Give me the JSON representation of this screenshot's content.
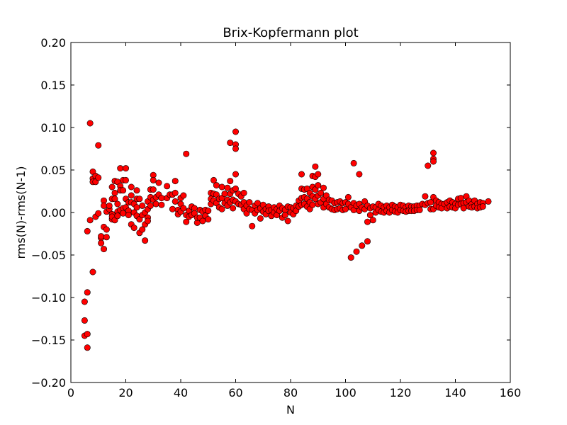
{
  "chart_data": {
    "type": "scatter",
    "title": "Brix-Kopfermann plot",
    "xlabel": "N",
    "ylabel": "rms(N)-rms(N-1)",
    "xlim": [
      0,
      160
    ],
    "ylim": [
      -0.2,
      0.2
    ],
    "x_ticks": [
      0,
      20,
      40,
      60,
      80,
      100,
      120,
      140,
      160
    ],
    "y_ticks": [
      -0.2,
      -0.15,
      -0.1,
      -0.05,
      0.0,
      0.05,
      0.1,
      0.15,
      0.2
    ],
    "x_tick_labels": [
      "0",
      "20",
      "40",
      "60",
      "80",
      "100",
      "120",
      "140",
      "160"
    ],
    "y_tick_labels": [
      "−0.20",
      "−0.15",
      "−0.10",
      "−0.05",
      "0.00",
      "0.05",
      "0.10",
      "0.15",
      "0.20"
    ],
    "grid": false,
    "marker": "circle",
    "marker_color": "#ff0000",
    "marker_edge_color": "#000000",
    "points": [
      [
        5,
        -0.145
      ],
      [
        5,
        -0.105
      ],
      [
        5,
        -0.127
      ],
      [
        6,
        -0.159
      ],
      [
        6,
        -0.143
      ],
      [
        6,
        -0.094
      ],
      [
        6,
        -0.022
      ],
      [
        7,
        0.105
      ],
      [
        7,
        -0.009
      ],
      [
        8,
        -0.07
      ],
      [
        8,
        0.048
      ],
      [
        8,
        0.04
      ],
      [
        8,
        0.036
      ],
      [
        9,
        0.036
      ],
      [
        9,
        0.043
      ],
      [
        9,
        -0.005
      ],
      [
        10,
        0.079
      ],
      [
        10,
        0.041
      ],
      [
        10,
        -0.001
      ],
      [
        11,
        -0.03
      ],
      [
        11,
        -0.036
      ],
      [
        11,
        -0.028
      ],
      [
        12,
        -0.017
      ],
      [
        12,
        -0.043
      ],
      [
        12,
        0.014
      ],
      [
        12,
        0.008
      ],
      [
        13,
        -0.02
      ],
      [
        13,
        -0.029
      ],
      [
        13,
        0.001
      ],
      [
        14,
        0.004
      ],
      [
        14,
        0.008
      ],
      [
        15,
        0.03
      ],
      [
        15,
        0.016
      ],
      [
        15,
        -0.002
      ],
      [
        15,
        -0.008
      ],
      [
        15,
        -0.005
      ],
      [
        16,
        0.037
      ],
      [
        16,
        0.023
      ],
      [
        16,
        0.016
      ],
      [
        16,
        -0.009
      ],
      [
        17,
        0.036
      ],
      [
        17,
        0.01
      ],
      [
        17,
        0.001
      ],
      [
        17,
        -0.004
      ],
      [
        18,
        0.052
      ],
      [
        18,
        0.031
      ],
      [
        18,
        0.026
      ],
      [
        18,
        0.003
      ],
      [
        19,
        0.038
      ],
      [
        19,
        0.026
      ],
      [
        19,
        0.005
      ],
      [
        19,
        -0.001
      ],
      [
        20,
        0.052
      ],
      [
        20,
        0.038
      ],
      [
        20,
        0.016
      ],
      [
        20,
        0.006
      ],
      [
        21,
        0.012
      ],
      [
        21,
        0.002
      ],
      [
        21,
        -0.003
      ],
      [
        22,
        0.03
      ],
      [
        22,
        0.02
      ],
      [
        22,
        0.012
      ],
      [
        22,
        -0.014
      ],
      [
        23,
        0.01
      ],
      [
        23,
        0.0
      ],
      [
        23,
        -0.018
      ],
      [
        24,
        0.026
      ],
      [
        24,
        0.016
      ],
      [
        24,
        0.006
      ],
      [
        24,
        -0.004
      ],
      [
        25,
        0.016
      ],
      [
        25,
        -0.008
      ],
      [
        25,
        -0.024
      ],
      [
        26,
        0.008
      ],
      [
        26,
        -0.003
      ],
      [
        26,
        -0.02
      ],
      [
        27,
        -0.033
      ],
      [
        27,
        -0.014
      ],
      [
        27,
        0.0
      ],
      [
        28,
        0.013
      ],
      [
        28,
        0.004
      ],
      [
        28,
        -0.006
      ],
      [
        28,
        -0.01
      ],
      [
        29,
        0.027
      ],
      [
        29,
        0.018
      ],
      [
        29,
        0.008
      ],
      [
        30,
        0.044
      ],
      [
        30,
        0.038
      ],
      [
        30,
        0.027
      ],
      [
        30,
        0.015
      ],
      [
        31,
        0.018
      ],
      [
        31,
        0.01
      ],
      [
        32,
        0.035
      ],
      [
        32,
        0.021
      ],
      [
        33,
        0.017
      ],
      [
        33,
        0.009
      ],
      [
        35,
        0.031
      ],
      [
        35,
        0.017
      ],
      [
        36,
        0.021
      ],
      [
        37,
        0.004
      ],
      [
        37,
        0.021
      ],
      [
        38,
        0.037
      ],
      [
        38,
        0.023
      ],
      [
        38,
        0.013
      ],
      [
        39,
        0.003
      ],
      [
        39,
        -0.002
      ],
      [
        40,
        0.017
      ],
      [
        40,
        0.01
      ],
      [
        40,
        0.001
      ],
      [
        41,
        0.02
      ],
      [
        41,
        0.005
      ],
      [
        42,
        0.069
      ],
      [
        42,
        -0.011
      ],
      [
        42,
        -0.003
      ],
      [
        43,
        0.002
      ],
      [
        43,
        -0.005
      ],
      [
        44,
        0.007
      ],
      [
        44,
        -0.003
      ],
      [
        45,
        0.005
      ],
      [
        45,
        -0.001
      ],
      [
        46,
        -0.012
      ],
      [
        46,
        -0.006
      ],
      [
        47,
        0.003
      ],
      [
        47,
        -0.006
      ],
      [
        48,
        -0.01
      ],
      [
        48,
        0.001
      ],
      [
        49,
        0.003
      ],
      [
        49,
        -0.004
      ],
      [
        50,
        -0.008
      ],
      [
        50,
        0.002
      ],
      [
        51,
        0.023
      ],
      [
        51,
        0.016
      ],
      [
        51,
        0.01
      ],
      [
        52,
        0.038
      ],
      [
        52,
        0.022
      ],
      [
        52,
        0.014
      ],
      [
        53,
        0.032
      ],
      [
        53,
        0.021
      ],
      [
        53,
        0.011
      ],
      [
        54,
        0.016
      ],
      [
        54,
        0.006
      ],
      [
        55,
        0.03
      ],
      [
        55,
        0.017
      ],
      [
        55,
        0.004
      ],
      [
        56,
        0.022
      ],
      [
        56,
        0.011
      ],
      [
        57,
        0.029
      ],
      [
        57,
        0.015
      ],
      [
        57,
        0.008
      ],
      [
        58,
        0.082
      ],
      [
        58,
        0.037
      ],
      [
        58,
        0.022
      ],
      [
        58,
        0.012
      ],
      [
        59,
        0.026
      ],
      [
        59,
        0.015
      ],
      [
        59,
        0.005
      ],
      [
        60,
        0.095
      ],
      [
        60,
        0.08
      ],
      [
        60,
        0.075
      ],
      [
        60,
        0.045
      ],
      [
        60,
        0.028
      ],
      [
        60,
        0.013
      ],
      [
        61,
        0.022
      ],
      [
        61,
        0.01
      ],
      [
        62,
        0.019
      ],
      [
        62,
        0.009
      ],
      [
        63,
        0.023
      ],
      [
        63,
        0.012
      ],
      [
        63,
        0.004
      ],
      [
        64,
        0.008
      ],
      [
        64,
        -0.001
      ],
      [
        65,
        0.012
      ],
      [
        65,
        0.004
      ],
      [
        66,
        -0.016
      ],
      [
        66,
        0.003
      ],
      [
        67,
        0.008
      ],
      [
        67,
        -0.001
      ],
      [
        68,
        0.011
      ],
      [
        68,
        0.003
      ],
      [
        69,
        -0.007
      ],
      [
        69,
        0.005
      ],
      [
        70,
        0.009
      ],
      [
        70,
        0.001
      ],
      [
        71,
        0.004
      ],
      [
        71,
        -0.002
      ],
      [
        72,
        0.007
      ],
      [
        72,
        0.002
      ],
      [
        73,
        0.003
      ],
      [
        73,
        -0.004
      ],
      [
        74,
        0.006
      ],
      [
        74,
        0.0
      ],
      [
        75,
        0.004
      ],
      [
        75,
        -0.003
      ],
      [
        76,
        0.008
      ],
      [
        76,
        0.002
      ],
      [
        77,
        0.005
      ],
      [
        77,
        -0.006
      ],
      [
        78,
        0.003
      ],
      [
        78,
        -0.003
      ],
      [
        79,
        0.007
      ],
      [
        79,
        -0.01
      ],
      [
        80,
        0.006
      ],
      [
        80,
        0.0
      ],
      [
        81,
        0.005
      ],
      [
        81,
        -0.002
      ],
      [
        82,
        0.008
      ],
      [
        82,
        0.002
      ],
      [
        83,
        0.014
      ],
      [
        83,
        0.007
      ],
      [
        84,
        0.045
      ],
      [
        84,
        0.028
      ],
      [
        84,
        0.017
      ],
      [
        84,
        0.009
      ],
      [
        85,
        0.027
      ],
      [
        85,
        0.018
      ],
      [
        85,
        0.01
      ],
      [
        86,
        0.028
      ],
      [
        86,
        0.016
      ],
      [
        86,
        0.007
      ],
      [
        87,
        0.023
      ],
      [
        87,
        0.012
      ],
      [
        87,
        0.004
      ],
      [
        88,
        0.043
      ],
      [
        88,
        0.03
      ],
      [
        88,
        0.019
      ],
      [
        88,
        0.009
      ],
      [
        89,
        0.054
      ],
      [
        89,
        0.042
      ],
      [
        89,
        0.027
      ],
      [
        89,
        0.016
      ],
      [
        90,
        0.045
      ],
      [
        90,
        0.032
      ],
      [
        90,
        0.02
      ],
      [
        90,
        0.01
      ],
      [
        91,
        0.023
      ],
      [
        91,
        0.012
      ],
      [
        92,
        0.029
      ],
      [
        92,
        0.016
      ],
      [
        92,
        0.006
      ],
      [
        93,
        0.02
      ],
      [
        93,
        0.01
      ],
      [
        94,
        0.015
      ],
      [
        94,
        0.006
      ],
      [
        95,
        0.014
      ],
      [
        95,
        0.004
      ],
      [
        96,
        0.011
      ],
      [
        96,
        0.003
      ],
      [
        97,
        0.012
      ],
      [
        97,
        0.004
      ],
      [
        98,
        0.013
      ],
      [
        98,
        0.005
      ],
      [
        99,
        0.011
      ],
      [
        99,
        0.003
      ],
      [
        100,
        0.012
      ],
      [
        100,
        0.004
      ],
      [
        101,
        0.018
      ],
      [
        101,
        0.01
      ],
      [
        102,
        -0.053
      ],
      [
        102,
        0.006
      ],
      [
        103,
        0.058
      ],
      [
        103,
        0.011
      ],
      [
        103,
        0.003
      ],
      [
        104,
        -0.046
      ],
      [
        104,
        0.008
      ],
      [
        105,
        0.045
      ],
      [
        105,
        0.01
      ],
      [
        105,
        0.002
      ],
      [
        106,
        -0.039
      ],
      [
        106,
        0.006
      ],
      [
        107,
        0.013
      ],
      [
        107,
        0.004
      ],
      [
        108,
        -0.034
      ],
      [
        108,
        -0.011
      ],
      [
        108,
        0.008
      ],
      [
        109,
        0.005
      ],
      [
        109,
        -0.003
      ],
      [
        110,
        0.007
      ],
      [
        110,
        -0.009
      ],
      [
        111,
        0.006
      ],
      [
        111,
        0.0
      ],
      [
        112,
        0.01
      ],
      [
        112,
        0.003
      ],
      [
        113,
        0.008
      ],
      [
        113,
        0.001
      ],
      [
        114,
        0.006
      ],
      [
        114,
        0.0
      ],
      [
        115,
        0.008
      ],
      [
        115,
        0.002
      ],
      [
        116,
        0.006
      ],
      [
        116,
        0.0
      ],
      [
        117,
        0.009
      ],
      [
        117,
        0.003
      ],
      [
        118,
        0.007
      ],
      [
        118,
        0.001
      ],
      [
        119,
        0.006
      ],
      [
        119,
        0.0
      ],
      [
        120,
        0.009
      ],
      [
        120,
        0.003
      ],
      [
        121,
        0.008
      ],
      [
        121,
        0.002
      ],
      [
        122,
        0.006
      ],
      [
        122,
        0.001
      ],
      [
        123,
        0.008
      ],
      [
        123,
        0.002
      ],
      [
        124,
        0.007
      ],
      [
        124,
        0.002
      ],
      [
        125,
        0.007
      ],
      [
        125,
        0.002
      ],
      [
        126,
        0.008
      ],
      [
        126,
        0.003
      ],
      [
        127,
        0.008
      ],
      [
        127,
        0.003
      ],
      [
        128,
        0.01
      ],
      [
        129,
        0.019
      ],
      [
        129,
        0.009
      ],
      [
        130,
        0.055
      ],
      [
        130,
        0.011
      ],
      [
        131,
        0.012
      ],
      [
        131,
        0.004
      ],
      [
        132,
        0.07
      ],
      [
        132,
        0.063
      ],
      [
        132,
        0.06
      ],
      [
        132,
        0.018
      ],
      [
        132,
        0.004
      ],
      [
        133,
        0.014
      ],
      [
        133,
        0.008
      ],
      [
        134,
        0.012
      ],
      [
        134,
        0.006
      ],
      [
        135,
        0.01
      ],
      [
        135,
        0.005
      ],
      [
        136,
        0.01
      ],
      [
        137,
        0.012
      ],
      [
        137,
        0.005
      ],
      [
        138,
        0.014
      ],
      [
        138,
        0.007
      ],
      [
        139,
        0.012
      ],
      [
        139,
        0.006
      ],
      [
        140,
        0.01
      ],
      [
        140,
        0.005
      ],
      [
        141,
        0.016
      ],
      [
        141,
        0.009
      ],
      [
        142,
        0.017
      ],
      [
        142,
        0.01
      ],
      [
        143,
        0.011
      ],
      [
        143,
        0.005
      ],
      [
        144,
        0.019
      ],
      [
        144,
        0.012
      ],
      [
        145,
        0.014
      ],
      [
        145,
        0.007
      ],
      [
        146,
        0.01
      ],
      [
        146,
        0.006
      ],
      [
        147,
        0.014
      ],
      [
        147,
        0.007
      ],
      [
        148,
        0.01
      ],
      [
        148,
        0.005
      ],
      [
        149,
        0.012
      ],
      [
        149,
        0.006
      ],
      [
        150,
        0.011
      ],
      [
        150,
        0.007
      ],
      [
        152,
        0.013
      ]
    ]
  }
}
